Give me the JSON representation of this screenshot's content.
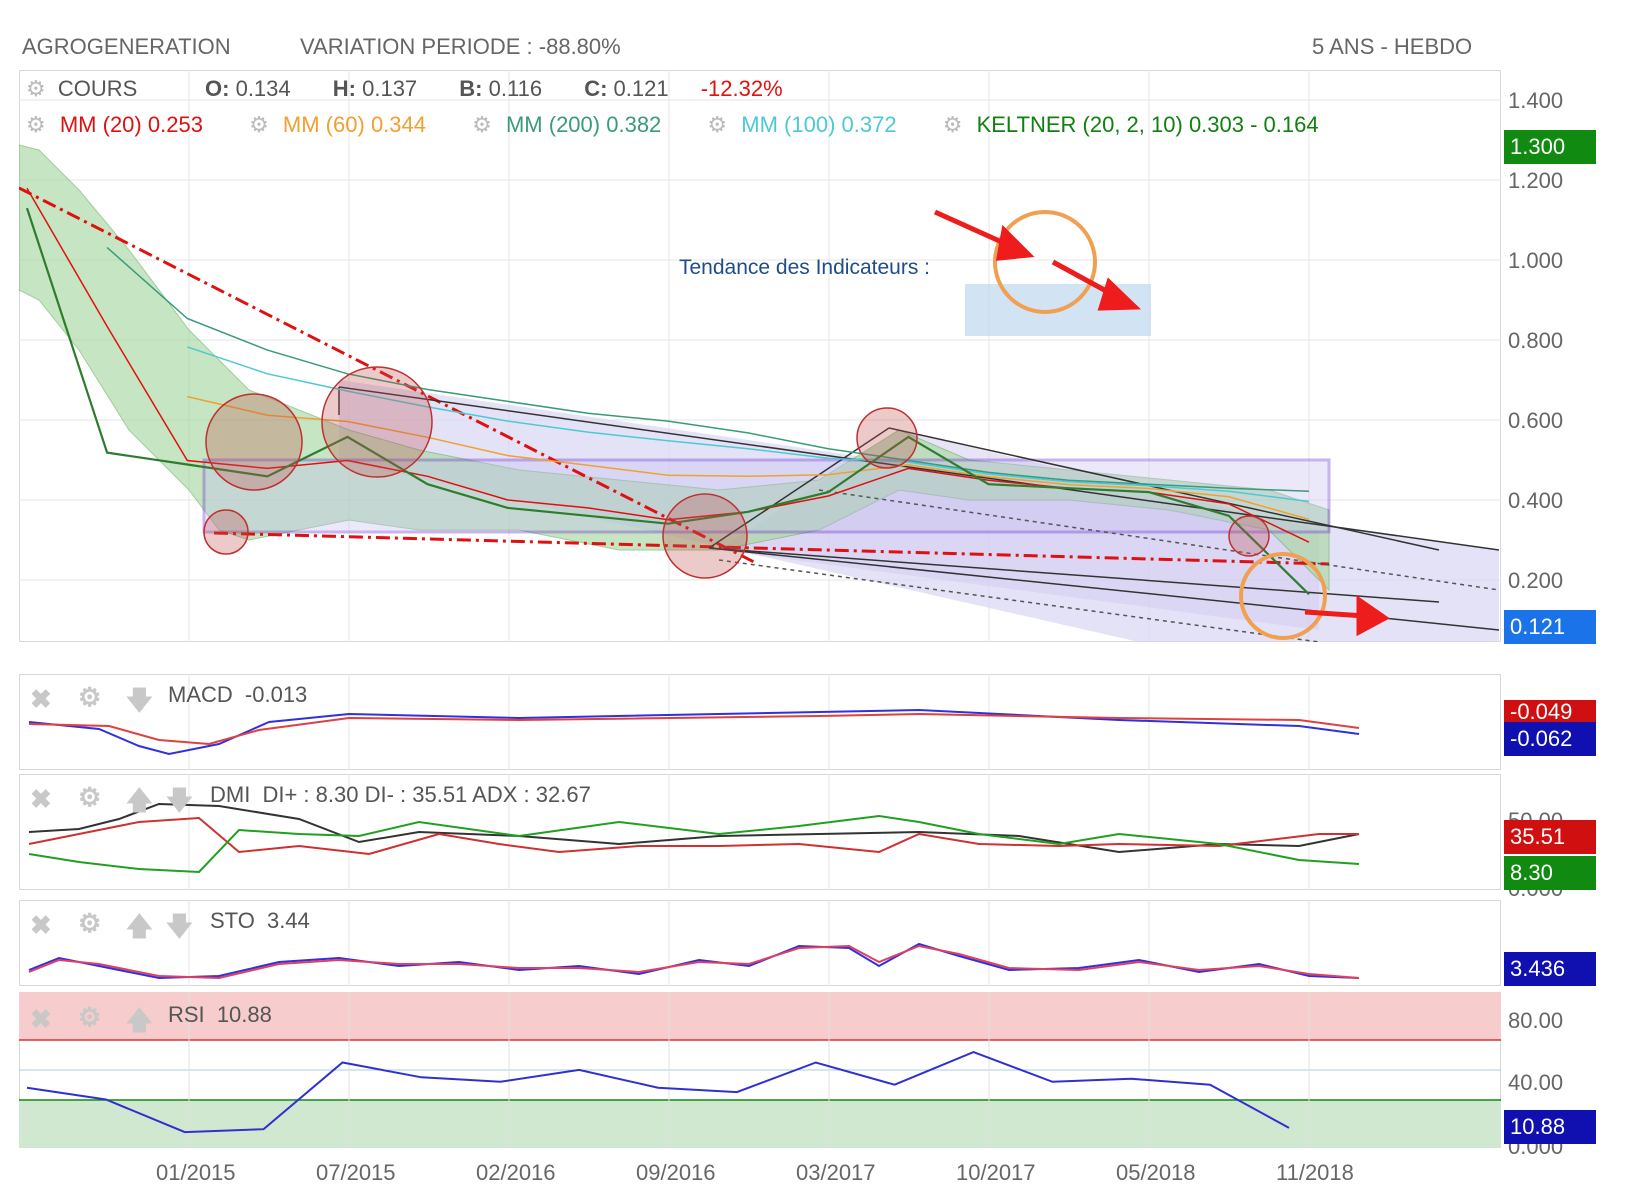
{
  "header": {
    "symbol": "AGROGENERATION",
    "variation": "VARIATION PERIODE : -88.80%",
    "period": "5 ANS - HEBDO"
  },
  "quote": {
    "label": "COURS",
    "o_label": "O:",
    "o": "0.134",
    "h_label": "H:",
    "h": "0.137",
    "b_label": "B:",
    "b": "0.116",
    "c_label": "C:",
    "c": "0.121",
    "change": "-12.32%"
  },
  "indicators": [
    {
      "name": "MM (20)",
      "value": "0.253",
      "color": "#e01010"
    },
    {
      "name": "MM (60)",
      "value": "0.344",
      "color": "#f0a030"
    },
    {
      "name": "MM (200)",
      "value": "0.382",
      "color": "#3a9a7a"
    },
    {
      "name": "MM (100)",
      "value": "0.372",
      "color": "#4ccad0"
    },
    {
      "name": "KELTNER (20, 2, 10)",
      "value": "0.303 - 0.164",
      "color": "#108010"
    }
  ],
  "annotation": {
    "text": "Tendance des Indicateurs :"
  },
  "price_axis": {
    "ticks": [
      "1.400",
      "1.200",
      "1.000",
      "0.800",
      "0.600",
      "0.400",
      "0.200"
    ],
    "badge_high": "1.300",
    "badge_last": "0.121",
    "badge_high_color": "#108a10",
    "badge_last_color": "#1a73e8"
  },
  "macd": {
    "label": "MACD",
    "value": "-0.013",
    "badge_signal": "-0.049",
    "badge_macd": "-0.062"
  },
  "dmi": {
    "label": "DMI",
    "text": "DI+ : 8.30 DI- : 35.51 ADX : 32.67",
    "axis_top": "50.00",
    "axis_bottom": "0.000",
    "badge_di_minus": "35.51",
    "badge_di_plus": "8.30"
  },
  "sto": {
    "label": "STO",
    "value": "3.44",
    "badge": "3.436"
  },
  "rsi": {
    "label": "RSI",
    "value": "10.88",
    "ticks": [
      "80.00",
      "40.00"
    ],
    "axis_bottom": "0.000",
    "badge": "10.88"
  },
  "x_axis": {
    "ticks": [
      "01/2015",
      "07/2015",
      "02/2016",
      "09/2016",
      "03/2017",
      "10/2017",
      "05/2018",
      "11/2018"
    ]
  },
  "chart_data": {
    "type": "line",
    "title": "AGROGENERATION",
    "x": [
      "2014-07",
      "2014-10",
      "2015-01",
      "2015-04",
      "2015-07",
      "2015-10",
      "2016-02",
      "2016-05",
      "2016-09",
      "2016-12",
      "2017-03",
      "2017-06",
      "2017-10",
      "2018-01",
      "2018-05",
      "2018-08",
      "2018-11"
    ],
    "series": [
      {
        "name": "COURS",
        "values": [
          1.1,
          0.48,
          0.45,
          0.42,
          0.52,
          0.4,
          0.34,
          0.32,
          0.3,
          0.33,
          0.38,
          0.52,
          0.4,
          0.39,
          0.38,
          0.32,
          0.121
        ]
      },
      {
        "name": "MM (20)",
        "values": [
          1.15,
          0.8,
          0.46,
          0.44,
          0.46,
          0.42,
          0.36,
          0.34,
          0.31,
          0.33,
          0.37,
          0.44,
          0.41,
          0.39,
          0.38,
          0.35,
          0.253
        ]
      },
      {
        "name": "MM (200)",
        "values": [
          null,
          1.0,
          0.82,
          0.74,
          0.68,
          0.64,
          0.61,
          0.58,
          0.56,
          0.53,
          0.49,
          0.46,
          0.43,
          0.41,
          0.4,
          0.39,
          0.382
        ]
      }
    ],
    "ylim": [
      0.0,
      1.45
    ],
    "rsi_values": [
      38,
      30,
      8,
      10,
      55,
      45,
      42,
      50,
      38,
      35,
      55,
      40,
      62,
      42,
      44,
      40,
      10.88
    ]
  }
}
